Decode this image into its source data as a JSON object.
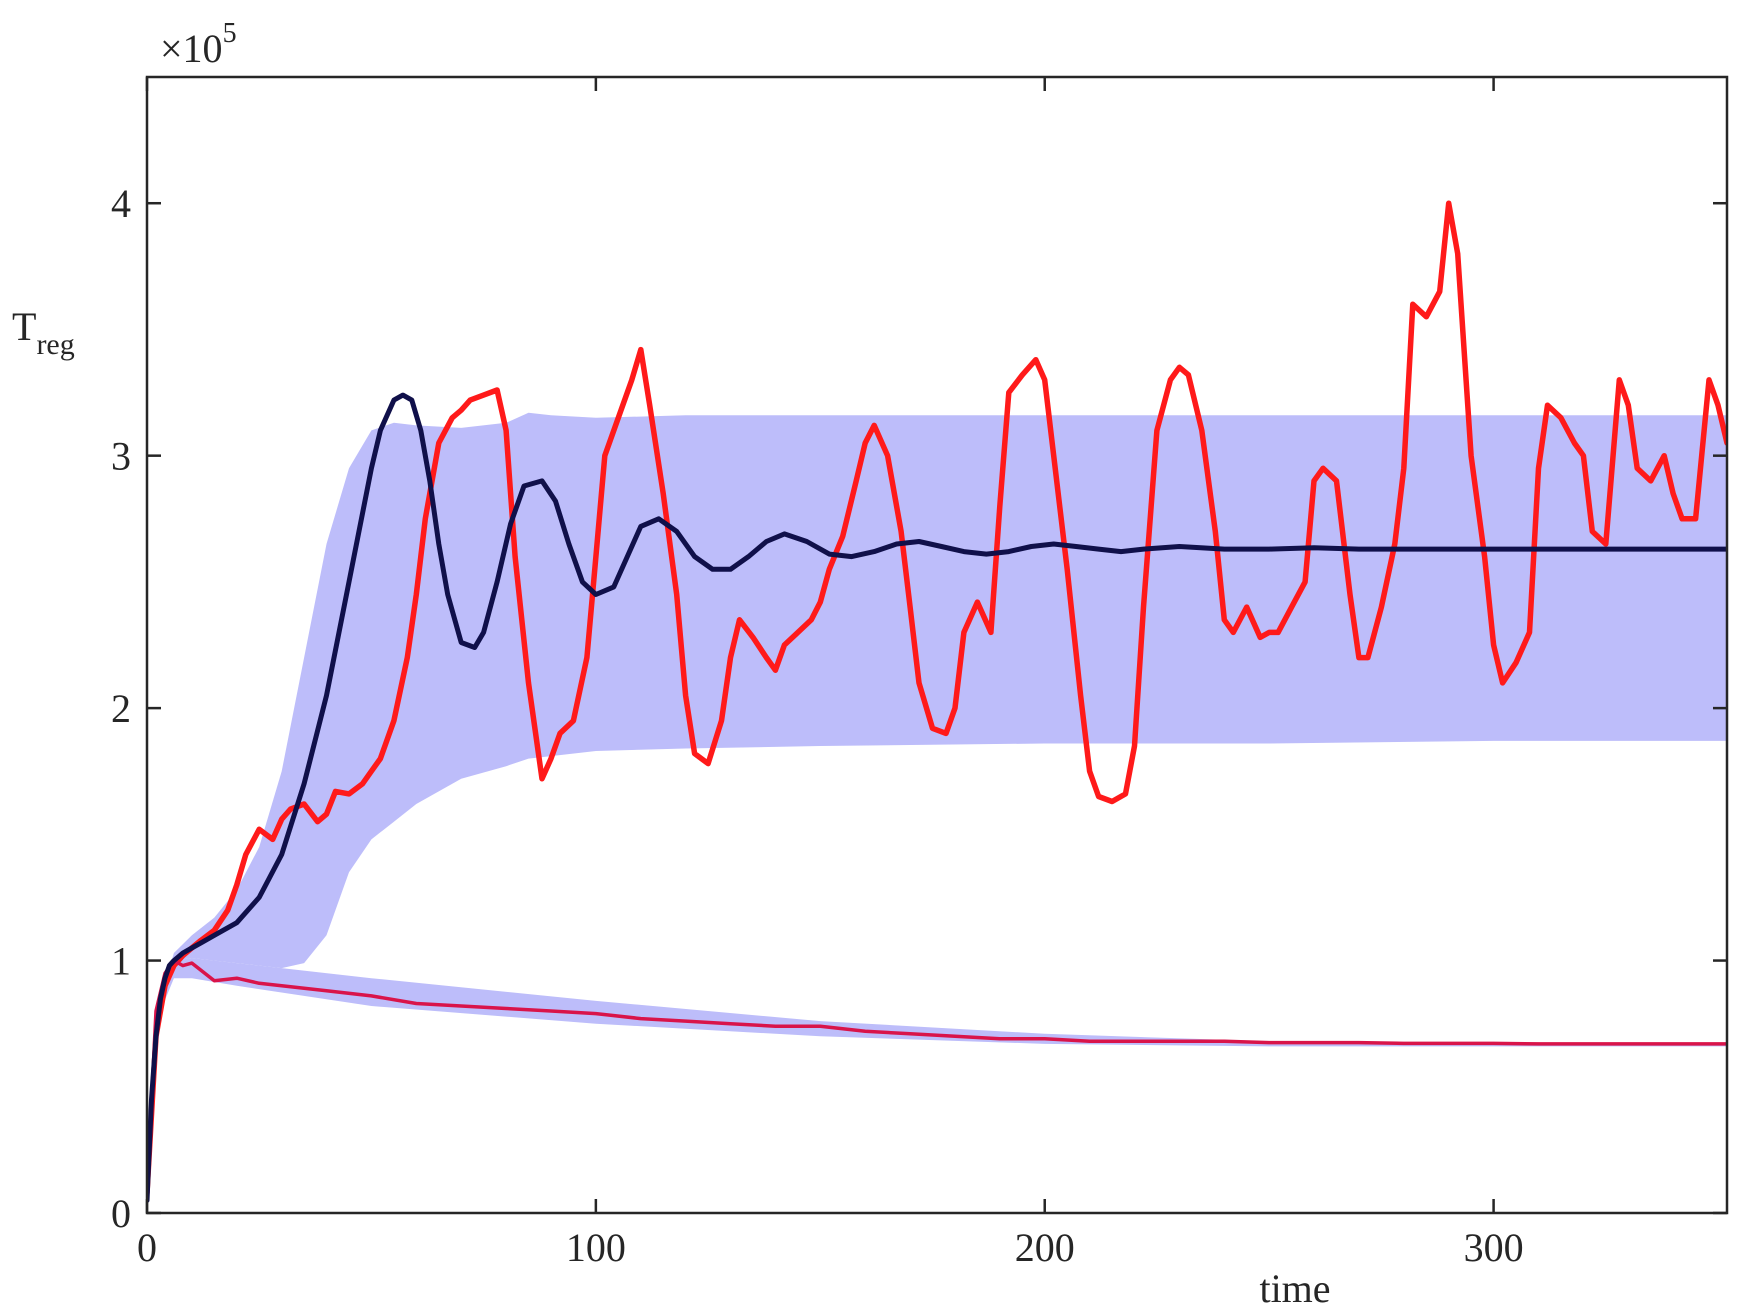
{
  "chart_data": {
    "type": "area",
    "xlabel": "time",
    "ylabel_main": "T",
    "ylabel_sub": "reg",
    "y_exponent_base": "×10",
    "y_exponent_power": "5",
    "xlim": [
      0,
      352
    ],
    "ylim": [
      0,
      4.5
    ],
    "x_ticks": [
      0,
      100,
      200,
      300
    ],
    "x_tick_labels": [
      "0",
      "100",
      "200",
      "300"
    ],
    "y_ticks": [
      0,
      1,
      2,
      3,
      4
    ],
    "y_tick_labels": [
      "0",
      "1",
      "2",
      "3",
      "4"
    ],
    "grid": false,
    "colors": {
      "band": "#bdbdfa",
      "upper_trajectory": "#ff1a1a",
      "lower_trajectory": "#d9144a",
      "mean": "#10104a",
      "axis": "#262626"
    },
    "upper_band": {
      "x": [
        0,
        3,
        6,
        10,
        15,
        20,
        25,
        30,
        35,
        40,
        45,
        50,
        55,
        60,
        70,
        80,
        85,
        90,
        100,
        120,
        150,
        200,
        250,
        300,
        352
      ],
      "upper": [
        0.06,
        0.85,
        1.03,
        1.1,
        1.17,
        1.28,
        1.45,
        1.75,
        2.2,
        2.65,
        2.95,
        3.1,
        3.13,
        3.12,
        3.11,
        3.13,
        3.17,
        3.16,
        3.15,
        3.16,
        3.16,
        3.16,
        3.16,
        3.16,
        3.16
      ],
      "lower": [
        0.06,
        0.8,
        1.0,
        1.01,
        1.0,
        0.99,
        0.98,
        0.97,
        0.99,
        1.1,
        1.35,
        1.48,
        1.55,
        1.62,
        1.72,
        1.77,
        1.8,
        1.81,
        1.83,
        1.84,
        1.85,
        1.86,
        1.86,
        1.87,
        1.87
      ]
    },
    "lower_band": {
      "x": [
        0,
        3,
        6,
        10,
        20,
        50,
        100,
        150,
        200,
        250,
        300,
        352
      ],
      "upper": [
        0.06,
        0.85,
        1.0,
        1.01,
        0.99,
        0.93,
        0.84,
        0.76,
        0.71,
        0.68,
        0.67,
        0.67
      ],
      "lower": [
        0.06,
        0.8,
        0.93,
        0.93,
        0.9,
        0.82,
        0.75,
        0.7,
        0.67,
        0.66,
        0.66,
        0.66
      ]
    },
    "series": [
      {
        "role": "upper_trajectory",
        "x": [
          0,
          2,
          4,
          6,
          8,
          10,
          12,
          15,
          18,
          20,
          22,
          25,
          28,
          30,
          32,
          35,
          38,
          40,
          42,
          45,
          48,
          50,
          52,
          55,
          58,
          60,
          62,
          65,
          68,
          70,
          72,
          75,
          78,
          80,
          82,
          85,
          88,
          90,
          92,
          95,
          98,
          100,
          102,
          105,
          108,
          110,
          112,
          115,
          118,
          120,
          122,
          125,
          128,
          130,
          132,
          135,
          138,
          140,
          142,
          145,
          148,
          150,
          152,
          155,
          158,
          160,
          162,
          165,
          168,
          170,
          172,
          175,
          178,
          180,
          182,
          185,
          188,
          190,
          192,
          195,
          198,
          200,
          202,
          205,
          208,
          210,
          212,
          215,
          218,
          220,
          222,
          225,
          228,
          230,
          232,
          235,
          238,
          240,
          242,
          245,
          248,
          250,
          252,
          255,
          258,
          260,
          262,
          265,
          268,
          270,
          272,
          275,
          278,
          280,
          282,
          285,
          288,
          290,
          292,
          295,
          298,
          300,
          302,
          305,
          308,
          310,
          312,
          315,
          318,
          320,
          322,
          325,
          328,
          330,
          332,
          335,
          338,
          340,
          342,
          345,
          348,
          350,
          352
        ],
        "y": [
          0.08,
          0.7,
          0.9,
          0.98,
          1.02,
          1.05,
          1.08,
          1.12,
          1.2,
          1.3,
          1.42,
          1.52,
          1.48,
          1.56,
          1.6,
          1.62,
          1.55,
          1.58,
          1.67,
          1.66,
          1.7,
          1.75,
          1.8,
          1.95,
          2.2,
          2.45,
          2.75,
          3.05,
          3.15,
          3.18,
          3.22,
          3.24,
          3.26,
          3.1,
          2.6,
          2.1,
          1.72,
          1.8,
          1.9,
          1.95,
          2.2,
          2.6,
          3.0,
          3.15,
          3.3,
          3.42,
          3.2,
          2.85,
          2.45,
          2.05,
          1.82,
          1.78,
          1.95,
          2.2,
          2.35,
          2.28,
          2.2,
          2.15,
          2.25,
          2.3,
          2.35,
          2.42,
          2.55,
          2.68,
          2.9,
          3.05,
          3.12,
          3.0,
          2.7,
          2.4,
          2.1,
          1.92,
          1.9,
          2.0,
          2.3,
          2.42,
          2.3,
          2.8,
          3.25,
          3.32,
          3.38,
          3.3,
          3.0,
          2.55,
          2.05,
          1.75,
          1.65,
          1.63,
          1.66,
          1.85,
          2.4,
          3.1,
          3.3,
          3.35,
          3.32,
          3.1,
          2.7,
          2.35,
          2.3,
          2.4,
          2.28,
          2.3,
          2.3,
          2.4,
          2.5,
          2.9,
          2.95,
          2.9,
          2.45,
          2.2,
          2.2,
          2.4,
          2.65,
          2.95,
          3.6,
          3.55,
          3.65,
          4.0,
          3.8,
          3.0,
          2.6,
          2.25,
          2.1,
          2.18,
          2.3,
          2.95,
          3.2,
          3.15,
          3.05,
          3.0,
          2.7,
          2.65,
          3.3,
          3.2,
          2.95,
          2.9,
          3.0,
          2.85,
          2.75,
          2.75,
          3.3,
          3.2,
          3.05
        ]
      },
      {
        "role": "lower_trajectory",
        "x": [
          0,
          2,
          4,
          6,
          8,
          10,
          15,
          20,
          25,
          30,
          35,
          40,
          50,
          60,
          70,
          80,
          90,
          100,
          110,
          120,
          130,
          140,
          150,
          160,
          170,
          180,
          190,
          200,
          210,
          220,
          230,
          240,
          250,
          260,
          270,
          280,
          290,
          300,
          310,
          320,
          330,
          340,
          352
        ],
        "y": [
          0.08,
          0.8,
          0.95,
          1.0,
          0.98,
          0.99,
          0.92,
          0.93,
          0.91,
          0.9,
          0.89,
          0.88,
          0.86,
          0.83,
          0.82,
          0.81,
          0.8,
          0.79,
          0.77,
          0.76,
          0.75,
          0.74,
          0.74,
          0.72,
          0.71,
          0.7,
          0.69,
          0.69,
          0.68,
          0.68,
          0.68,
          0.68,
          0.675,
          0.675,
          0.675,
          0.672,
          0.672,
          0.672,
          0.67,
          0.67,
          0.67,
          0.67,
          0.67
        ]
      },
      {
        "role": "mean",
        "x": [
          0,
          1,
          2,
          3,
          4,
          5,
          6,
          8,
          10,
          12,
          15,
          20,
          25,
          30,
          35,
          40,
          45,
          50,
          52,
          55,
          57,
          59,
          61,
          63,
          65,
          67,
          70,
          73,
          75,
          78,
          81,
          84,
          88,
          91,
          94,
          97,
          100,
          104,
          107,
          110,
          114,
          118,
          122,
          126,
          130,
          134,
          138,
          142,
          147,
          152,
          157,
          162,
          167,
          172,
          177,
          182,
          187,
          192,
          197,
          202,
          207,
          212,
          217,
          222,
          230,
          240,
          250,
          260,
          270,
          280,
          290,
          300,
          310,
          320,
          330,
          340,
          352
        ],
        "y": [
          0.05,
          0.45,
          0.7,
          0.85,
          0.93,
          0.98,
          1.0,
          1.03,
          1.05,
          1.07,
          1.1,
          1.15,
          1.25,
          1.42,
          1.7,
          2.05,
          2.5,
          2.95,
          3.1,
          3.22,
          3.24,
          3.22,
          3.1,
          2.9,
          2.65,
          2.45,
          2.26,
          2.24,
          2.3,
          2.5,
          2.73,
          2.88,
          2.9,
          2.82,
          2.65,
          2.5,
          2.45,
          2.48,
          2.6,
          2.72,
          2.75,
          2.7,
          2.6,
          2.55,
          2.55,
          2.6,
          2.66,
          2.69,
          2.66,
          2.61,
          2.6,
          2.62,
          2.65,
          2.66,
          2.64,
          2.62,
          2.61,
          2.62,
          2.64,
          2.65,
          2.64,
          2.63,
          2.62,
          2.63,
          2.64,
          2.63,
          2.63,
          2.635,
          2.63,
          2.63,
          2.63,
          2.63,
          2.63,
          2.63,
          2.63,
          2.63,
          2.63
        ]
      }
    ]
  }
}
